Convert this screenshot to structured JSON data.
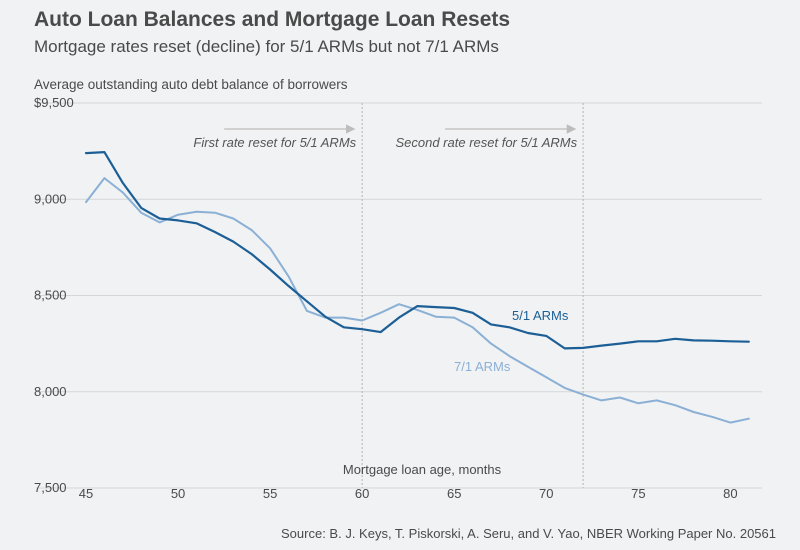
{
  "chart_data": {
    "type": "line",
    "title": "Auto Loan Balances and Mortgage Loan Resets",
    "subtitle": "Mortgage rates reset (decline) for 5/1 ARMs but not 7/1 ARMs",
    "ylabel": "Average outstanding auto debt balance of borrowers",
    "xlabel": "Mortgage loan age, months",
    "source": "Source: B. J. Keys, T. Piskorski, A. Seru, and V. Yao, NBER Working Paper No. 20561",
    "xlim": [
      45,
      81.5
    ],
    "ylim": [
      7500,
      9500
    ],
    "x_ticks": [
      45,
      50,
      55,
      60,
      65,
      70,
      75,
      80
    ],
    "x_tick_labels": [
      "45",
      "50",
      "55",
      "60",
      "65",
      "70",
      "75",
      "80"
    ],
    "y_ticks": [
      7500,
      8000,
      8500,
      9000,
      9500
    ],
    "y_tick_labels": [
      "7,500",
      "8,000",
      "8,500",
      "9,000",
      "$9,500"
    ],
    "grid": "horizontal",
    "colors": {
      "series_51": "#1b5f96",
      "series_71": "#8bb0d6",
      "grid": "#d4d6d8",
      "vline": "#bdbdbd",
      "arrow": "#bdbdbd"
    },
    "annotations": [
      {
        "text": "First rate reset for 5/1 ARMs",
        "x": 60
      },
      {
        "text": "Second rate reset for 5/1 ARMs",
        "x": 72
      }
    ],
    "x": [
      45,
      46,
      47,
      48,
      49,
      50,
      51,
      52,
      53,
      54,
      55,
      56,
      57,
      58,
      59,
      60,
      61,
      62,
      63,
      64,
      65,
      66,
      67,
      68,
      69,
      70,
      71,
      72,
      73,
      74,
      75,
      76,
      77,
      78,
      79,
      80,
      81
    ],
    "series": [
      {
        "name": "5/1 ARMs",
        "values": [
          9240,
          9245,
          9085,
          8955,
          8900,
          8890,
          8875,
          8830,
          8780,
          8715,
          8635,
          8550,
          8470,
          8390,
          8335,
          8325,
          8310,
          8385,
          8445,
          8440,
          8435,
          8410,
          8350,
          8335,
          8305,
          8290,
          8225,
          8228,
          8240,
          8250,
          8262,
          8262,
          8275,
          8267,
          8265,
          8262,
          8260
        ]
      },
      {
        "name": "7/1 ARMs",
        "values": [
          8985,
          9110,
          9035,
          8930,
          8880,
          8920,
          8935,
          8930,
          8900,
          8840,
          8745,
          8600,
          8420,
          8385,
          8385,
          8370,
          8410,
          8455,
          8425,
          8390,
          8385,
          8335,
          8250,
          8185,
          8130,
          8075,
          8020,
          7985,
          7955,
          7970,
          7940,
          7955,
          7930,
          7895,
          7870,
          7840,
          7860
        ]
      }
    ]
  }
}
